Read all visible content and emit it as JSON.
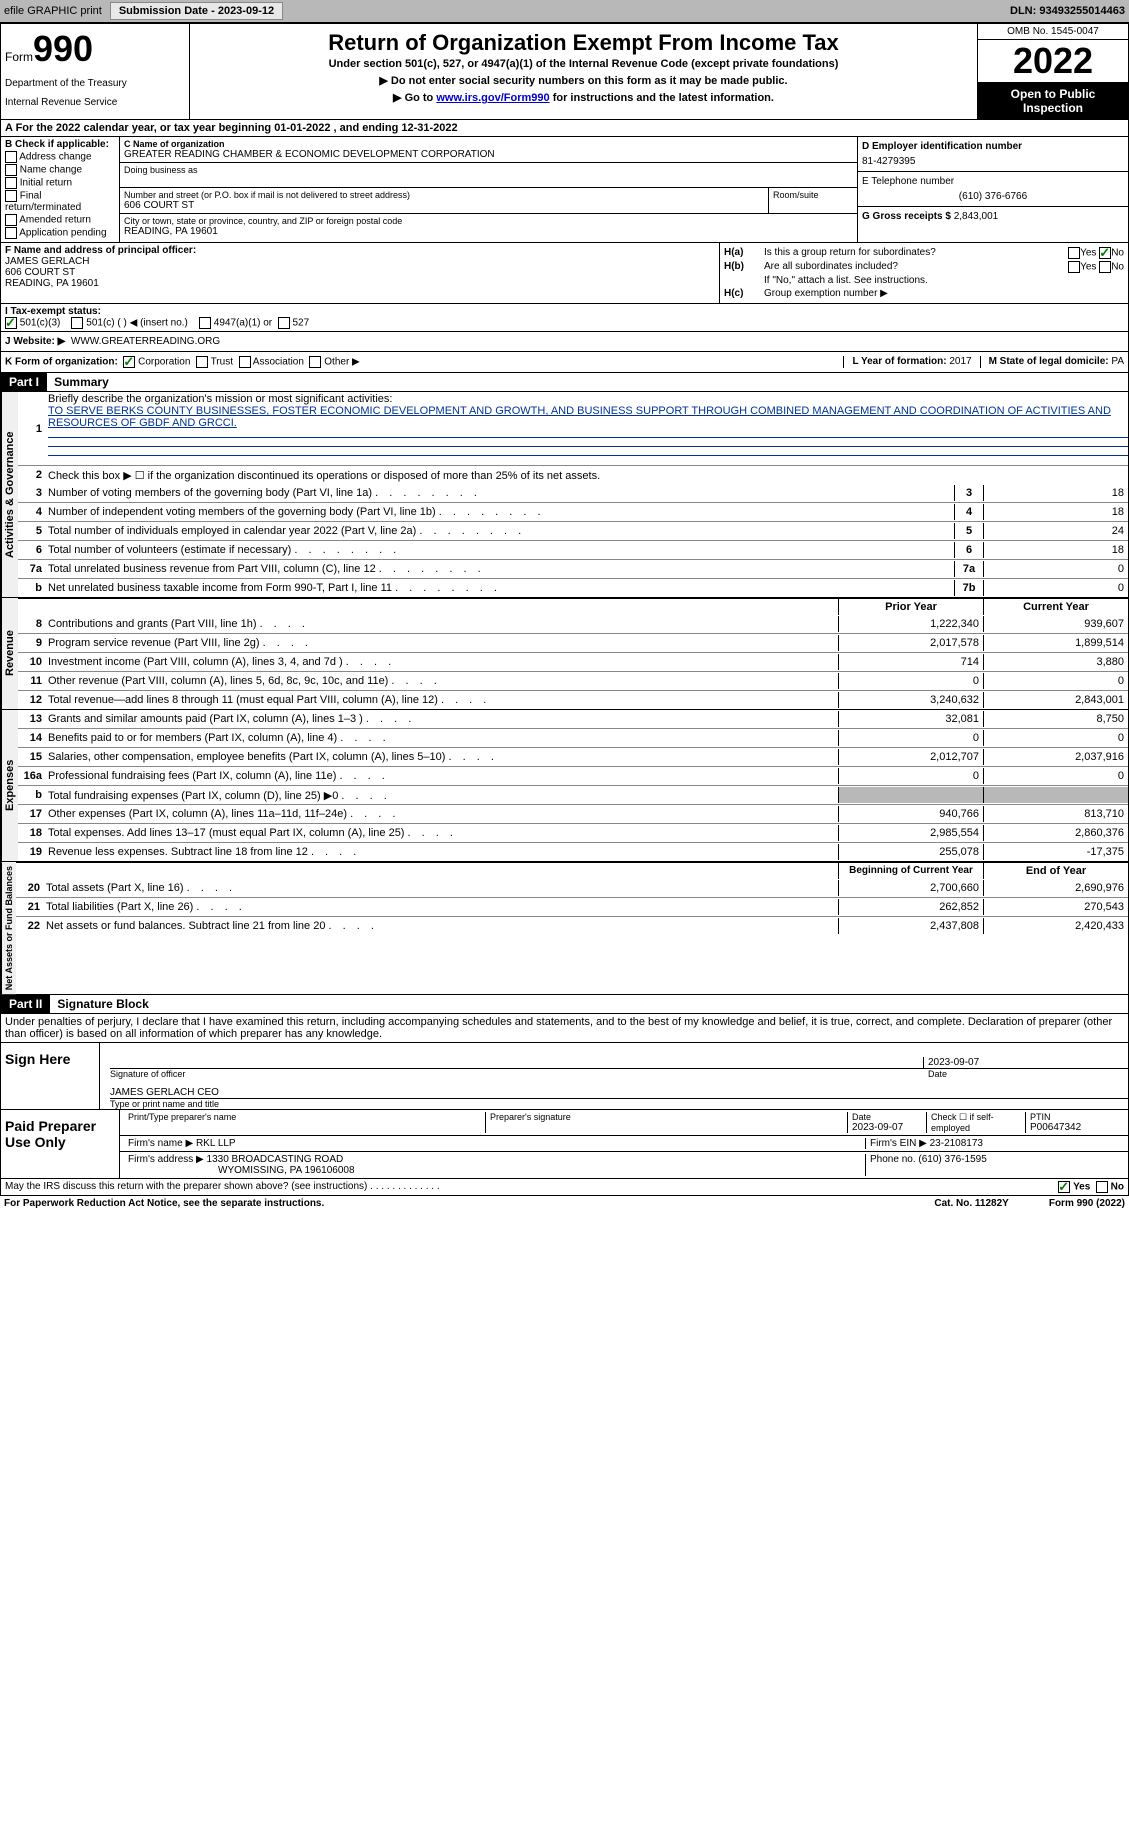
{
  "topbar": {
    "efile": "efile GRAPHIC print",
    "submission_label": "Submission Date - 2023-09-12",
    "dln": "DLN: 93493255014463"
  },
  "header": {
    "form_word": "Form",
    "form_num": "990",
    "dept": "Department of the Treasury",
    "irs": "Internal Revenue Service",
    "title": "Return of Organization Exempt From Income Tax",
    "subtitle": "Under section 501(c), 527, or 4947(a)(1) of the Internal Revenue Code (except private foundations)",
    "note1": "▶ Do not enter social security numbers on this form as it may be made public.",
    "note2_pre": "▶ Go to ",
    "note2_link": "www.irs.gov/Form990",
    "note2_post": " for instructions and the latest information.",
    "omb": "OMB No. 1545-0047",
    "year": "2022",
    "open": "Open to Public Inspection"
  },
  "rowA": "A For the 2022 calendar year, or tax year beginning 01-01-2022    , and ending 12-31-2022",
  "colB": {
    "title": "B Check if applicable:",
    "opts": [
      "Address change",
      "Name change",
      "Initial return",
      "Final return/terminated",
      "Amended return",
      "Application pending"
    ]
  },
  "colC": {
    "name_label": "C Name of organization",
    "name": "GREATER READING CHAMBER & ECONOMIC DEVELOPMENT CORPORATION",
    "dba_label": "Doing business as",
    "street_label": "Number and street (or P.O. box if mail is not delivered to street address)",
    "room_label": "Room/suite",
    "street": "606 COURT ST",
    "city_label": "City or town, state or province, country, and ZIP or foreign postal code",
    "city": "READING, PA  19601"
  },
  "colD": {
    "ein_label": "D Employer identification number",
    "ein": "81-4279395",
    "phone_label": "E Telephone number",
    "phone": "(610) 376-6766",
    "gross_label": "G Gross receipts $",
    "gross": "2,843,001"
  },
  "colF": {
    "label": "F Name and address of principal officer:",
    "name": "JAMES GERLACH",
    "addr1": "606 COURT ST",
    "addr2": "READING, PA  19601"
  },
  "colH": {
    "ha_label": "H(a)",
    "ha_text": "Is this a group return for subordinates?",
    "hb_label": "H(b)",
    "hb_text": "Are all subordinates included?",
    "hb_note": "If \"No,\" attach a list. See instructions.",
    "hc_label": "H(c)",
    "hc_text": "Group exemption number ▶",
    "yes": "Yes",
    "no": "No"
  },
  "rowI": {
    "label": "I  Tax-exempt status:",
    "o1": "501(c)(3)",
    "o2": "501(c) (  ) ◀ (insert no.)",
    "o3": "4947(a)(1) or",
    "o4": "527"
  },
  "rowJ": {
    "label": "J  Website: ▶",
    "val": "WWW.GREATERREADING.ORG"
  },
  "rowK": {
    "label": "K Form of organization:",
    "corp": "Corporation",
    "trust": "Trust",
    "assoc": "Association",
    "other": "Other ▶",
    "l_label": "L Year of formation: ",
    "l_val": "2017",
    "m_label": "M State of legal domicile: ",
    "m_val": "PA"
  },
  "part1": {
    "header": "Part I",
    "title": "Summary"
  },
  "summary": {
    "line1_label": "Briefly describe the organization's mission or most significant activities:",
    "line1_text": "TO SERVE BERKS COUNTY BUSINESSES, FOSTER ECONOMIC DEVELOPMENT AND GROWTH, AND BUSINESS SUPPORT THROUGH COMBINED MANAGEMENT AND COORDINATION OF ACTIVITIES AND RESOURCES OF GBDF AND GRCCI.",
    "line2": "Check this box ▶ ☐ if the organization discontinued its operations or disposed of more than 25% of its net assets.",
    "rows_ag": [
      {
        "n": "3",
        "d": "Number of voting members of the governing body (Part VI, line 1a)",
        "b": "3",
        "v": "18"
      },
      {
        "n": "4",
        "d": "Number of independent voting members of the governing body (Part VI, line 1b)",
        "b": "4",
        "v": "18"
      },
      {
        "n": "5",
        "d": "Total number of individuals employed in calendar year 2022 (Part V, line 2a)",
        "b": "5",
        "v": "24"
      },
      {
        "n": "6",
        "d": "Total number of volunteers (estimate if necessary)",
        "b": "6",
        "v": "18"
      },
      {
        "n": "7a",
        "d": "Total unrelated business revenue from Part VIII, column (C), line 12",
        "b": "7a",
        "v": "0"
      },
      {
        "n": "b",
        "d": "Net unrelated business taxable income from Form 990-T, Part I, line 11",
        "b": "7b",
        "v": "0"
      }
    ],
    "prior_label": "Prior Year",
    "current_label": "Current Year",
    "rows_rev": [
      {
        "n": "8",
        "d": "Contributions and grants (Part VIII, line 1h)",
        "p": "1,222,340",
        "c": "939,607"
      },
      {
        "n": "9",
        "d": "Program service revenue (Part VIII, line 2g)",
        "p": "2,017,578",
        "c": "1,899,514"
      },
      {
        "n": "10",
        "d": "Investment income (Part VIII, column (A), lines 3, 4, and 7d )",
        "p": "714",
        "c": "3,880"
      },
      {
        "n": "11",
        "d": "Other revenue (Part VIII, column (A), lines 5, 6d, 8c, 9c, 10c, and 11e)",
        "p": "0",
        "c": "0"
      },
      {
        "n": "12",
        "d": "Total revenue—add lines 8 through 11 (must equal Part VIII, column (A), line 12)",
        "p": "3,240,632",
        "c": "2,843,001"
      }
    ],
    "rows_exp": [
      {
        "n": "13",
        "d": "Grants and similar amounts paid (Part IX, column (A), lines 1–3 )",
        "p": "32,081",
        "c": "8,750"
      },
      {
        "n": "14",
        "d": "Benefits paid to or for members (Part IX, column (A), line 4)",
        "p": "0",
        "c": "0"
      },
      {
        "n": "15",
        "d": "Salaries, other compensation, employee benefits (Part IX, column (A), lines 5–10)",
        "p": "2,012,707",
        "c": "2,037,916"
      },
      {
        "n": "16a",
        "d": "Professional fundraising fees (Part IX, column (A), line 11e)",
        "p": "0",
        "c": "0"
      },
      {
        "n": "b",
        "d": "Total fundraising expenses (Part IX, column (D), line 25) ▶0",
        "p": "",
        "c": "",
        "shaded": true
      },
      {
        "n": "17",
        "d": "Other expenses (Part IX, column (A), lines 11a–11d, 11f–24e)",
        "p": "940,766",
        "c": "813,710"
      },
      {
        "n": "18",
        "d": "Total expenses. Add lines 13–17 (must equal Part IX, column (A), line 25)",
        "p": "2,985,554",
        "c": "2,860,376"
      },
      {
        "n": "19",
        "d": "Revenue less expenses. Subtract line 18 from line 12",
        "p": "255,078",
        "c": "-17,375"
      }
    ],
    "begin_label": "Beginning of Current Year",
    "end_label": "End of Year",
    "rows_na": [
      {
        "n": "20",
        "d": "Total assets (Part X, line 16)",
        "p": "2,700,660",
        "c": "2,690,976"
      },
      {
        "n": "21",
        "d": "Total liabilities (Part X, line 26)",
        "p": "262,852",
        "c": "270,543"
      },
      {
        "n": "22",
        "d": "Net assets or fund balances. Subtract line 21 from line 20",
        "p": "2,437,808",
        "c": "2,420,433"
      }
    ],
    "side_ag": "Activities & Governance",
    "side_rev": "Revenue",
    "side_exp": "Expenses",
    "side_na": "Net Assets or Fund Balances"
  },
  "part2": {
    "header": "Part II",
    "title": "Signature Block",
    "perjury": "Under penalties of perjury, I declare that I have examined this return, including accompanying schedules and statements, and to the best of my knowledge and belief, it is true, correct, and complete. Declaration of preparer (other than officer) is based on all information of which preparer has any knowledge."
  },
  "sign": {
    "label": "Sign Here",
    "sig_label": "Signature of officer",
    "date": "2023-09-07",
    "date_label": "Date",
    "name": "JAMES GERLACH CEO",
    "name_label": "Type or print name and title"
  },
  "prep": {
    "label": "Paid Preparer Use Only",
    "pt_label": "Print/Type preparer's name",
    "ps_label": "Preparer's signature",
    "pdate_label": "Date",
    "pdate": "2023-09-07",
    "check_label": "Check ☐ if self-employed",
    "ptin_label": "PTIN",
    "ptin": "P00647342",
    "firm_label": "Firm's name    ▶",
    "firm": "RKL LLP",
    "ein_label": "Firm's EIN ▶",
    "ein": "23-2108173",
    "addr_label": "Firm's address ▶",
    "addr1": "1330 BROADCASTING ROAD",
    "addr2": "WYOMISSING, PA  196106008",
    "phone_label": "Phone no.",
    "phone": "(610) 376-1595"
  },
  "footer": {
    "discuss": "May the IRS discuss this return with the preparer shown above? (see instructions)",
    "yes": "Yes",
    "no": "No",
    "paperwork": "For Paperwork Reduction Act Notice, see the separate instructions.",
    "cat": "Cat. No. 11282Y",
    "form": "Form 990 (2022)"
  }
}
